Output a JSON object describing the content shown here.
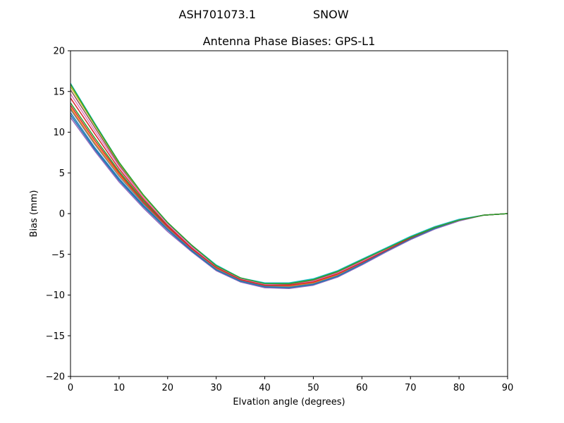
{
  "figure": {
    "suptitle_left": "ASH701073.1",
    "suptitle_right": "SNOW"
  },
  "chart_data": {
    "type": "line",
    "title": "Antenna Phase Biases: GPS-L1",
    "xlabel": "Elvation angle (degrees)",
    "ylabel": "Bias (mm)",
    "xlim": [
      0,
      90
    ],
    "ylim": [
      -20,
      20
    ],
    "xticks": [
      0,
      10,
      20,
      30,
      40,
      50,
      60,
      70,
      80,
      90
    ],
    "xtick_labels": [
      "0",
      "10",
      "20",
      "30",
      "40",
      "50",
      "60",
      "70",
      "80",
      "90"
    ],
    "yticks": [
      -20,
      -15,
      -10,
      -5,
      0,
      5,
      10,
      15,
      20
    ],
    "ytick_labels": [
      "−20",
      "−15",
      "−10",
      "−5",
      "0",
      "5",
      "10",
      "15",
      "20"
    ],
    "grid": false,
    "x": [
      0,
      5,
      10,
      15,
      20,
      25,
      30,
      35,
      40,
      45,
      50,
      55,
      60,
      65,
      70,
      75,
      80,
      85,
      90
    ],
    "series": [
      {
        "color": "#1f77b4",
        "values": [
          12.4,
          8.1,
          4.3,
          1.0,
          -1.9,
          -4.5,
          -6.8,
          -8.2,
          -8.9,
          -9.0,
          -8.6,
          -7.6,
          -6.1,
          -4.6,
          -3.1,
          -1.8,
          -0.8,
          -0.2,
          0.0
        ]
      },
      {
        "color": "#ff7f0e",
        "values": [
          13.0,
          8.7,
          4.8,
          1.3,
          -1.7,
          -4.4,
          -6.7,
          -8.1,
          -8.8,
          -8.9,
          -8.5,
          -7.5,
          -6.0,
          -4.5,
          -3.0,
          -1.8,
          -0.8,
          -0.2,
          0.0
        ]
      },
      {
        "color": "#2ca02c",
        "values": [
          13.6,
          9.3,
          5.2,
          1.6,
          -1.5,
          -4.3,
          -6.6,
          -8.0,
          -8.7,
          -8.7,
          -8.3,
          -7.3,
          -5.9,
          -4.4,
          -2.9,
          -1.7,
          -0.8,
          -0.2,
          0.0
        ]
      },
      {
        "color": "#d62728",
        "values": [
          14.2,
          9.8,
          5.5,
          1.8,
          -1.4,
          -4.2,
          -6.5,
          -8.0,
          -8.7,
          -8.8,
          -8.3,
          -7.3,
          -5.9,
          -4.4,
          -2.9,
          -1.7,
          -0.8,
          -0.2,
          0.0
        ]
      },
      {
        "color": "#9467bd",
        "values": [
          11.8,
          7.7,
          3.9,
          0.7,
          -2.2,
          -4.7,
          -7.0,
          -8.4,
          -9.1,
          -9.2,
          -8.8,
          -7.8,
          -6.3,
          -4.7,
          -3.2,
          -1.9,
          -0.9,
          -0.2,
          0.0
        ]
      },
      {
        "color": "#8c564b",
        "values": [
          15.2,
          10.6,
          6.0,
          2.1,
          -1.2,
          -4.0,
          -6.4,
          -7.9,
          -8.6,
          -8.7,
          -8.2,
          -7.2,
          -5.8,
          -4.3,
          -2.9,
          -1.7,
          -0.8,
          -0.2,
          0.0
        ]
      },
      {
        "color": "#e377c2",
        "values": [
          14.7,
          10.2,
          5.8,
          2.0,
          -1.3,
          -4.1,
          -6.5,
          -8.0,
          -8.7,
          -8.8,
          -8.3,
          -7.3,
          -5.9,
          -4.4,
          -2.9,
          -1.7,
          -0.8,
          -0.2,
          0.0
        ]
      },
      {
        "color": "#7f7f7f",
        "values": [
          12.8,
          8.5,
          4.6,
          1.2,
          -1.8,
          -4.4,
          -6.8,
          -8.2,
          -8.9,
          -9.0,
          -8.6,
          -7.6,
          -6.1,
          -4.6,
          -3.1,
          -1.8,
          -0.8,
          -0.2,
          0.0
        ]
      },
      {
        "color": "#bcbd22",
        "values": [
          15.6,
          10.9,
          6.2,
          2.2,
          -1.1,
          -3.9,
          -6.4,
          -7.9,
          -8.6,
          -8.6,
          -8.1,
          -7.1,
          -5.7,
          -4.3,
          -2.9,
          -1.7,
          -0.8,
          -0.2,
          0.0
        ]
      },
      {
        "color": "#17becf",
        "values": [
          16.0,
          11.1,
          6.3,
          2.3,
          -1.1,
          -3.9,
          -6.3,
          -7.9,
          -8.5,
          -8.5,
          -8.0,
          -7.0,
          -5.6,
          -4.2,
          -2.8,
          -1.6,
          -0.7,
          -0.2,
          0.0
        ]
      },
      {
        "color": "#1f77b4",
        "values": [
          12.1,
          7.9,
          4.1,
          0.9,
          -2.0,
          -4.6,
          -6.9,
          -8.3,
          -9.0,
          -9.1,
          -8.7,
          -7.7,
          -6.2,
          -4.6,
          -3.1,
          -1.8,
          -0.8,
          -0.2,
          0.0
        ]
      },
      {
        "color": "#d62728",
        "values": [
          13.3,
          9.0,
          5.0,
          1.4,
          -1.6,
          -4.3,
          -6.6,
          -8.1,
          -8.8,
          -8.8,
          -8.4,
          -7.4,
          -6.0,
          -4.5,
          -3.0,
          -1.7,
          -0.8,
          -0.2,
          0.0
        ]
      },
      {
        "color": "#2ca02c",
        "values": [
          15.9,
          11.0,
          6.3,
          2.3,
          -1.1,
          -3.9,
          -6.4,
          -7.9,
          -8.6,
          -8.6,
          -8.1,
          -7.1,
          -5.7,
          -4.3,
          -2.9,
          -1.7,
          -0.8,
          -0.2,
          0.0
        ]
      }
    ]
  }
}
